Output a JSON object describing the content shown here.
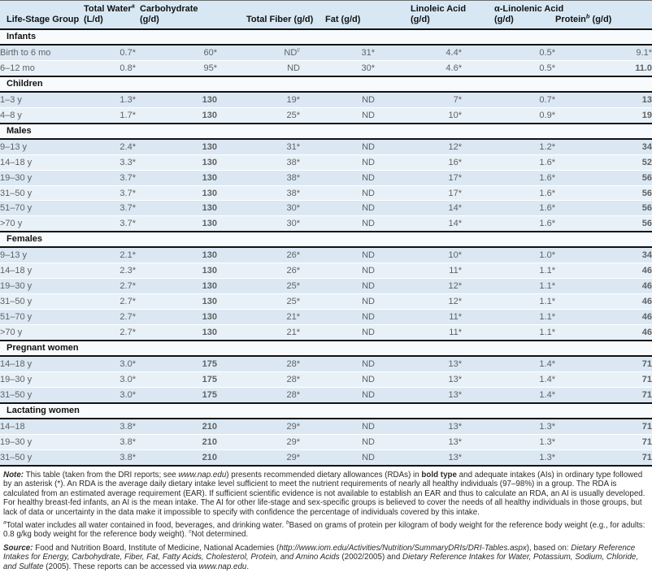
{
  "colors": {
    "header_bg": "#d7e8f4",
    "row_dark": "#dbe8f3",
    "row_light": "#e8f1f8",
    "band_bg": "#f8fbfd",
    "line": "#121212"
  },
  "table": {
    "columns": [
      {
        "lines": [
          "Life-Stage Group"
        ]
      },
      {
        "lines": [
          "Total Water^a",
          "(L/d)"
        ]
      },
      {
        "lines": [
          "Carbohydrate",
          "(g/d)"
        ]
      },
      {
        "lines": [
          "Total Fiber (g/d)"
        ]
      },
      {
        "lines": [
          "Fat (g/d)"
        ]
      },
      {
        "lines": [
          "Linoleic Acid",
          "(g/d)"
        ]
      },
      {
        "lines": [
          "α-Linolenic Acid",
          "(g/d)"
        ]
      },
      {
        "lines": [
          "Protein^b (g/d)"
        ]
      }
    ],
    "rows": [
      {
        "type": "section",
        "label": "Infants"
      },
      {
        "type": "data",
        "label": "Birth to 6 mo",
        "values": [
          "0.7*",
          "60*",
          "ND^c",
          "31*",
          "4.4*",
          "0.5*",
          "9.1*"
        ]
      },
      {
        "type": "data",
        "label": "6–12 mo",
        "values": [
          "0.8*",
          "95*",
          "ND",
          "30*",
          "4.6*",
          "0.5*",
          "11.0"
        ]
      },
      {
        "type": "section",
        "label": "Children"
      },
      {
        "type": "data",
        "label": "1–3 y",
        "values": [
          "1.3*",
          "130",
          "19*",
          "ND",
          "7*",
          "0.7*",
          "13"
        ]
      },
      {
        "type": "data",
        "label": "4–8 y",
        "values": [
          "1.7*",
          "130",
          "25*",
          "ND",
          "10*",
          "0.9*",
          "19"
        ]
      },
      {
        "type": "section",
        "label": "Males"
      },
      {
        "type": "data",
        "label": "9–13 y",
        "values": [
          "2.4*",
          "130",
          "31*",
          "ND",
          "12*",
          "1.2*",
          "34"
        ]
      },
      {
        "type": "data",
        "label": "14–18 y",
        "values": [
          "3.3*",
          "130",
          "38*",
          "ND",
          "16*",
          "1.6*",
          "52"
        ]
      },
      {
        "type": "data",
        "label": "19–30 y",
        "values": [
          "3.7*",
          "130",
          "38*",
          "ND",
          "17*",
          "1.6*",
          "56"
        ]
      },
      {
        "type": "data",
        "label": "31–50 y",
        "values": [
          "3.7*",
          "130",
          "38*",
          "ND",
          "17*",
          "1.6*",
          "56"
        ]
      },
      {
        "type": "data",
        "label": "51–70 y",
        "values": [
          "3.7*",
          "130",
          "30*",
          "ND",
          "14*",
          "1.6*",
          "56"
        ]
      },
      {
        "type": "data",
        "label": ">70 y",
        "values": [
          "3.7*",
          "130",
          "30*",
          "ND",
          "14*",
          "1.6*",
          "56"
        ]
      },
      {
        "type": "section",
        "label": "Females"
      },
      {
        "type": "data",
        "label": "9–13 y",
        "values": [
          "2.1*",
          "130",
          "26*",
          "ND",
          "10*",
          "1.0*",
          "34"
        ]
      },
      {
        "type": "data",
        "label": "14–18 y",
        "values": [
          "2.3*",
          "130",
          "26*",
          "ND",
          "11*",
          "1.1*",
          "46"
        ]
      },
      {
        "type": "data",
        "label": "19–30 y",
        "values": [
          "2.7*",
          "130",
          "25*",
          "ND",
          "12*",
          "1.1*",
          "46"
        ]
      },
      {
        "type": "data",
        "label": "31–50 y",
        "values": [
          "2.7*",
          "130",
          "25*",
          "ND",
          "12*",
          "1.1*",
          "46"
        ]
      },
      {
        "type": "data",
        "label": "51–70 y",
        "values": [
          "2.7*",
          "130",
          "21*",
          "ND",
          "11*",
          "1.1*",
          "46"
        ]
      },
      {
        "type": "data",
        "label": ">70 y",
        "values": [
          "2.7*",
          "130",
          "21*",
          "ND",
          "11*",
          "1.1*",
          "46"
        ]
      },
      {
        "type": "section",
        "label": "Pregnant women"
      },
      {
        "type": "data",
        "label": "14–18 y",
        "values": [
          "3.0*",
          "175",
          "28*",
          "ND",
          "13*",
          "1.4*",
          "71"
        ]
      },
      {
        "type": "data",
        "label": "19–30 y",
        "values": [
          "3.0*",
          "175",
          "28*",
          "ND",
          "13*",
          "1.4*",
          "71"
        ]
      },
      {
        "type": "data",
        "label": "31–50 y",
        "values": [
          "3.0*",
          "175",
          "28*",
          "ND",
          "13*",
          "1.4*",
          "71"
        ]
      },
      {
        "type": "section",
        "label": "Lactating women"
      },
      {
        "type": "data",
        "label": "14–18",
        "values": [
          "3.8*",
          "210",
          "29*",
          "ND",
          "13*",
          "1.3*",
          "71"
        ]
      },
      {
        "type": "data",
        "label": "19–30 y",
        "values": [
          "3.8*",
          "210",
          "29*",
          "ND",
          "13*",
          "1.3*",
          "71"
        ]
      },
      {
        "type": "data",
        "label": "31–50 y",
        "values": [
          "3.8*",
          "210",
          "29*",
          "ND",
          "13*",
          "1.3*",
          "71"
        ]
      }
    ]
  },
  "notes": {
    "note": [
      {
        "t": "Note:",
        "b": 1,
        "i": 1
      },
      {
        "t": " This table (taken from the DRI reports; see "
      },
      {
        "t": "www.nap.edu",
        "i": 1
      },
      {
        "t": ") presents recommended dietary allowances (RDAs) in "
      },
      {
        "t": "bold type",
        "b": 1
      },
      {
        "t": " and adequate intakes (AIs) in ordinary type followed by an asterisk (*). An RDA is the average daily dietary intake level sufficient to meet the nutrient requirements of nearly all healthy individuals (97–98%) in a group. The RDA is calculated from an estimated average requirement (EAR). If sufficient scientific evidence is not available to establish an EAR and thus to calculate an RDA, an AI is usually developed. For healthy breast-fed infants, an AI is the mean intake. The AI for other life-stage and sex-specific groups is believed to cover the needs of all healthy individuals in those groups, but lack of data or uncertainty in the data make it impossible to specify with confidence the percentage of individuals covered by this intake."
      }
    ],
    "footnotes": [
      {
        "t": "a",
        "sup": 1
      },
      {
        "t": "Total water includes all water contained in food, beverages, and drinking water.  "
      },
      {
        "t": "b",
        "sup": 1
      },
      {
        "t": "Based on grams of protein per kilogram of body weight for the reference body weight (e.g., for adults: 0.8 g/kg body weight for the reference body weight).  "
      },
      {
        "t": "c",
        "sup": 1
      },
      {
        "t": "Not determined."
      }
    ],
    "source": [
      {
        "t": "Source:",
        "b": 1,
        "i": 1
      },
      {
        "t": " Food and Nutrition Board, Institute of Medicine, National Academies ("
      },
      {
        "t": "http://www.iom.edu/Activities/Nutrition/SummaryDRIs/DRI-Tables.aspx",
        "i": 1
      },
      {
        "t": "), based on: "
      },
      {
        "t": "Dietary Reference Intakes for Energy, Carbohydrate, Fiber, Fat, Fatty Acids, Cholesterol, Protein, and Amino Acids",
        "i": 1
      },
      {
        "t": " (2002/2005) and "
      },
      {
        "t": "Dietary Reference Intakes for Water, Potassium, Sodium, Chloride, and Sulfate",
        "i": 1
      },
      {
        "t": " (2005). These reports can be accessed via "
      },
      {
        "t": "www.nap.edu",
        "i": 1
      },
      {
        "t": "."
      }
    ]
  }
}
